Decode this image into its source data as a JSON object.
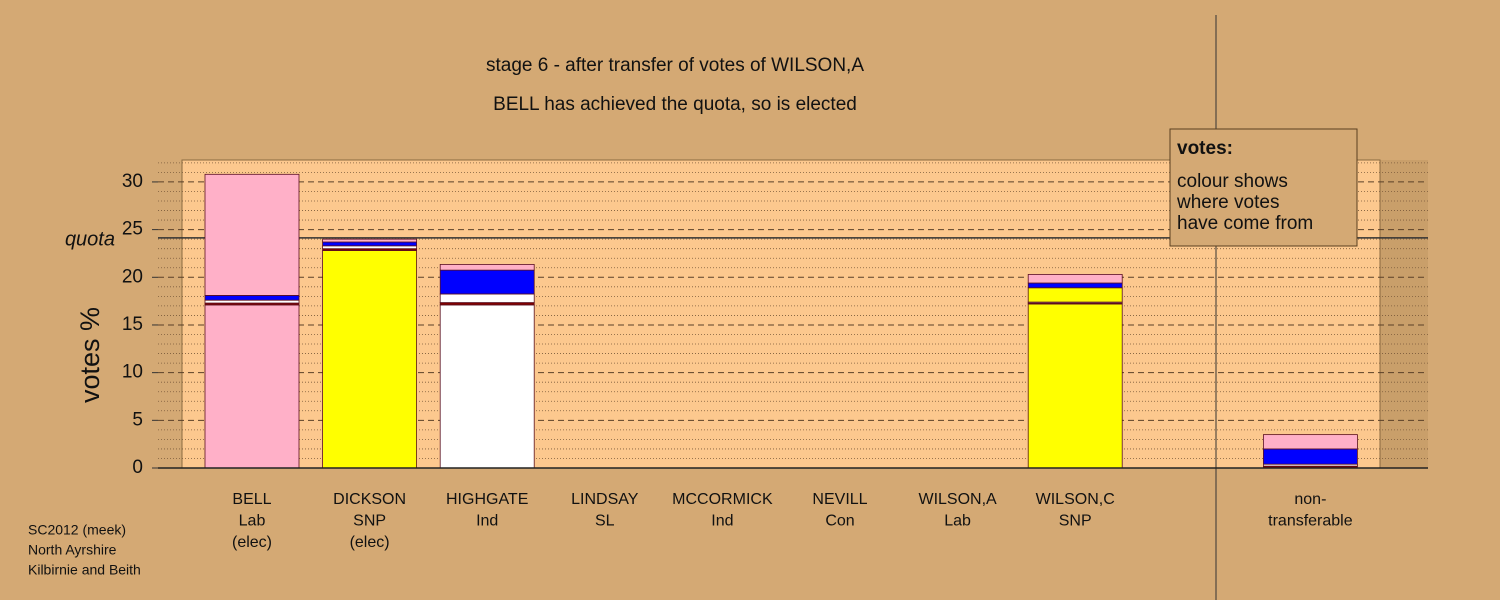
{
  "chart_data": {
    "type": "stacked_bar",
    "title": "stage 6 - after transfer of votes of WILSON,A",
    "subtitle": "BELL has achieved the quota, so is elected",
    "y_label": "votes %",
    "categories": [
      [
        "BELL",
        "Lab",
        "(elec)"
      ],
      [
        "DICKSON",
        "SNP",
        "(elec)"
      ],
      [
        "HIGHGATE",
        "Ind"
      ],
      [
        "LINDSAY",
        "SL"
      ],
      [
        "MCCORMICK",
        "Ind"
      ],
      [
        "NEVILL",
        "Con"
      ],
      [
        "WILSON,A",
        "Lab"
      ],
      [
        "WILSON,C",
        "SNP"
      ],
      null,
      [
        "non-",
        "transferable"
      ]
    ],
    "series": [
      {
        "color": "#ffb0c8",
        "values": [
          17.1,
          0,
          0,
          0,
          0,
          0,
          0,
          0,
          null,
          0
        ]
      },
      {
        "color": "#ffff00",
        "values": [
          0,
          22.8,
          0,
          0,
          0,
          0,
          0,
          0,
          null,
          0
        ]
      },
      {
        "color": "#ffffff",
        "values": [
          0,
          0,
          17.1,
          0,
          0,
          0,
          0,
          0,
          null,
          0
        ]
      },
      {
        "color": "#ffff00",
        "values": [
          0,
          0,
          0,
          0,
          0,
          0,
          0,
          17.2,
          null,
          0
        ]
      },
      {
        "color": "#800000",
        "values": [
          0.2,
          0.2,
          0.25,
          0,
          0,
          0,
          0,
          0.1,
          null,
          0.2
        ]
      },
      {
        "color": "#ffffff",
        "values": [
          0.3,
          0.3,
          0.9,
          0,
          0,
          0,
          0,
          0.1,
          null,
          0.2
        ]
      },
      {
        "color": "#ffff00",
        "values": [
          0,
          0,
          0,
          0,
          0,
          0,
          0,
          1.5,
          null,
          0
        ]
      },
      {
        "color": "#0000ff",
        "values": [
          0.5,
          0.4,
          2.5,
          0,
          0,
          0,
          0,
          0.5,
          null,
          1.6
        ]
      },
      {
        "color": "#ffb0c8",
        "values": [
          12.7,
          0.3,
          0.6,
          0,
          0,
          0,
          0,
          0.9,
          null,
          1.5
        ]
      }
    ],
    "ylim": [
      0,
      32.3
    ],
    "yticks": [
      0,
      5,
      10,
      15,
      20,
      25,
      30
    ],
    "minor_yticks": [
      1,
      2,
      3,
      4,
      6,
      7,
      8,
      9,
      11,
      12,
      13,
      14,
      16,
      17,
      18,
      19,
      21,
      22,
      23,
      24,
      26,
      27,
      28,
      29,
      31,
      32
    ],
    "quota": 24.13,
    "quota_label": "quota",
    "note": {
      "heading": "votes:",
      "lines": [
        "colour shows",
        "where votes",
        "have come from"
      ]
    },
    "footer": [
      "SC2012 (meek)",
      "North Ayrshire",
      "Kilbirnie and Beith"
    ]
  }
}
